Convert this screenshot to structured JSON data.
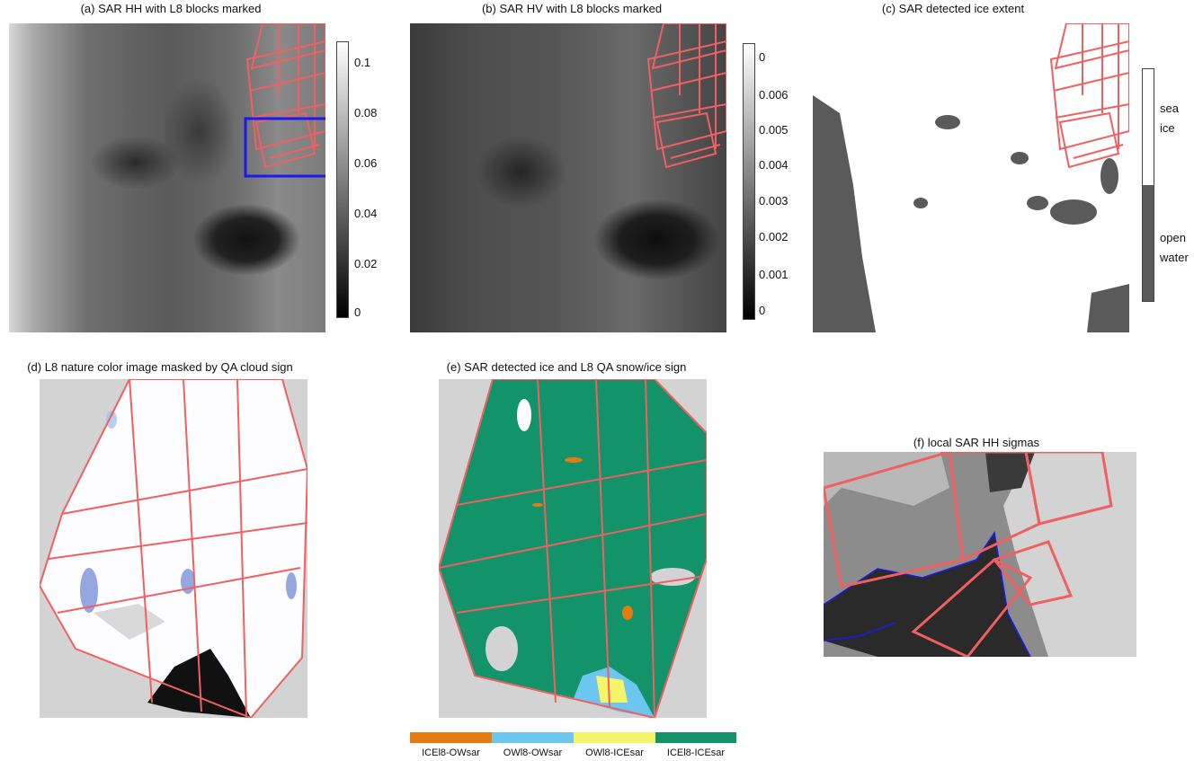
{
  "panels": {
    "a": {
      "title": "(a) SAR HH with L8 blocks marked",
      "ticks": [
        "0.1",
        "0.08",
        "0.06",
        "0.04",
        "0.02",
        "0"
      ]
    },
    "b": {
      "title": "(b) SAR HV with L8 blocks marked",
      "ticks": [
        "0",
        "0.006",
        "0.005",
        "0.004",
        "0.003",
        "0.002",
        "0.001",
        "0"
      ]
    },
    "c": {
      "title": "(c) SAR detected ice extent",
      "legend": {
        "sea_ice": "sea\nice",
        "open_water": "open\nwater"
      }
    },
    "d": {
      "title": "(d) L8 nature color image masked by QA cloud sign"
    },
    "e": {
      "title": "(e) SAR detected ice and L8 QA snow/ice sign",
      "legend": [
        {
          "label": "ICEl8-OWsar",
          "color": "#e57c12"
        },
        {
          "label": "OWl8-OWsar",
          "color": "#6cc6ef"
        },
        {
          "label": "OWl8-ICEsar",
          "color": "#f5f56a"
        },
        {
          "label": "ICEl8-ICEsar",
          "color": "#12936a"
        }
      ]
    },
    "f": {
      "title": "(f) local SAR HH sigmas"
    }
  },
  "colors": {
    "block_outline": "#f06060",
    "zoom_box": "#1a1aee",
    "open_water": "#5a5a5a",
    "background": "#d3d3d3"
  }
}
